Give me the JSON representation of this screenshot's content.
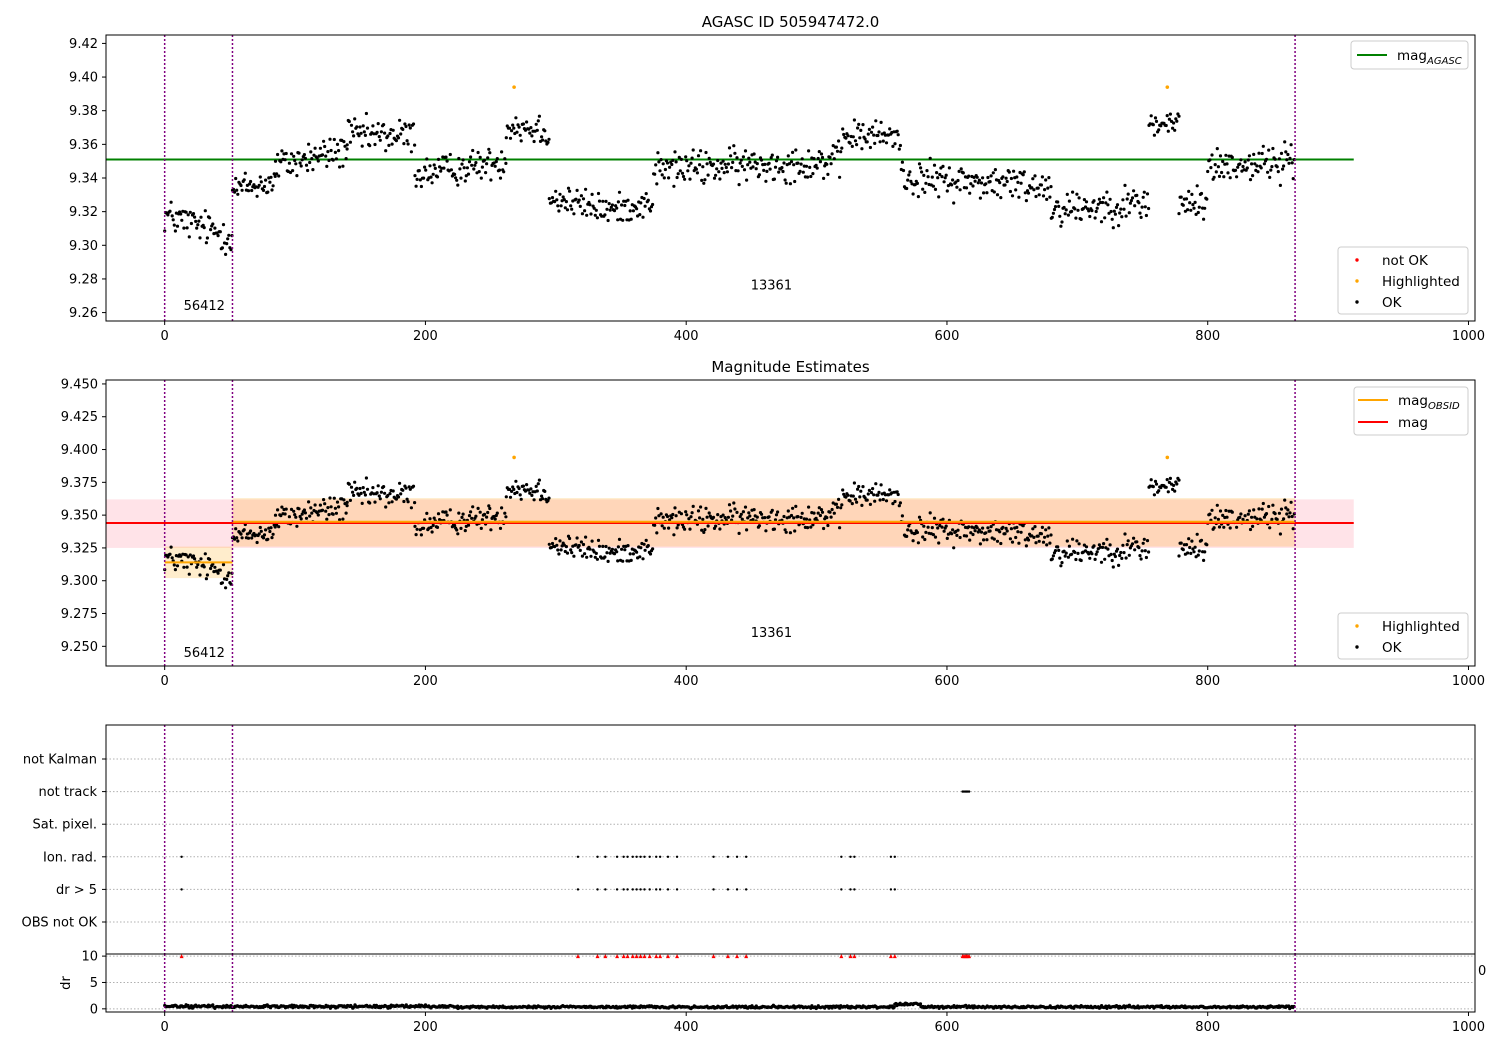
{
  "chart_data": [
    {
      "type": "scatter",
      "title": "AGASC ID 505947472.0",
      "xlabel": "",
      "ylabel": "",
      "xlim": [
        -45,
        1005
      ],
      "ylim": [
        9.255,
        9.425
      ],
      "xticks": [
        0,
        200,
        400,
        600,
        800,
        1000
      ],
      "yticks": [
        9.26,
        9.28,
        9.3,
        9.32,
        9.34,
        9.36,
        9.38,
        9.4,
        9.42
      ],
      "ytick_decimals": 2,
      "grid": false,
      "lines": [
        {
          "name": "mag",
          "subscript": "AGASC",
          "y": 9.351,
          "x": [
            -45,
            912
          ],
          "color": "#008000"
        }
      ],
      "legend_lines": [
        {
          "name": "mag",
          "subscript": "AGASC",
          "color": "#008000"
        }
      ],
      "legend_points": [
        {
          "name": "not OK",
          "color": "#ff0000"
        },
        {
          "name": "Highlighted",
          "color": "#ffa500"
        },
        {
          "name": "OK",
          "color": "#000000"
        }
      ],
      "vlines": [
        0,
        52,
        867
      ],
      "annotations": [
        {
          "text": "56412",
          "x": 25,
          "y": 9.264
        },
        {
          "text": "13361",
          "x": 460,
          "y": 9.276
        }
      ],
      "highlighted_points": [
        {
          "x": 268,
          "y": 9.394
        },
        {
          "x": 769,
          "y": 9.394
        }
      ],
      "segments": [
        {
          "x": [
            0,
            52
          ],
          "y": [
            9.318,
            9.305
          ],
          "noise": 0.009
        },
        {
          "x": [
            52,
            85
          ],
          "y": [
            9.333,
            9.338
          ],
          "noise": 0.008
        },
        {
          "x": [
            85,
            140
          ],
          "y": [
            9.347,
            9.357
          ],
          "noise": 0.009
        },
        {
          "x": [
            140,
            192
          ],
          "y": [
            9.365,
            9.365
          ],
          "noise": 0.009
        },
        {
          "x": [
            192,
            262
          ],
          "y": [
            9.342,
            9.35
          ],
          "noise": 0.008
        },
        {
          "x": [
            262,
            295
          ],
          "y": [
            9.372,
            9.368
          ],
          "noise": 0.009
        },
        {
          "x": [
            295,
            348
          ],
          "y": [
            9.328,
            9.32
          ],
          "noise": 0.008
        },
        {
          "x": [
            348,
            375
          ],
          "y": [
            9.322,
            9.325
          ],
          "noise": 0.007
        },
        {
          "x": [
            375,
            520
          ],
          "y": [
            9.345,
            9.35
          ],
          "noise": 0.009
        },
        {
          "x": [
            520,
            565
          ],
          "y": [
            9.365,
            9.365
          ],
          "noise": 0.008
        },
        {
          "x": [
            565,
            680
          ],
          "y": [
            9.34,
            9.335
          ],
          "noise": 0.009
        },
        {
          "x": [
            680,
            755
          ],
          "y": [
            9.322,
            9.325
          ],
          "noise": 0.009
        },
        {
          "x": [
            755,
            778
          ],
          "y": [
            9.372,
            9.372
          ],
          "noise": 0.008
        },
        {
          "x": [
            778,
            800
          ],
          "y": [
            9.325,
            9.325
          ],
          "noise": 0.008
        },
        {
          "x": [
            800,
            867
          ],
          "y": [
            9.347,
            9.35
          ],
          "noise": 0.009
        }
      ]
    },
    {
      "type": "scatter",
      "title": "Magnitude Estimates",
      "xlabel": "",
      "ylabel": "",
      "xlim": [
        -45,
        1005
      ],
      "ylim": [
        9.235,
        9.453
      ],
      "xticks": [
        0,
        200,
        400,
        600,
        800,
        1000
      ],
      "yticks": [
        9.25,
        9.275,
        9.3,
        9.325,
        9.35,
        9.375,
        9.4,
        9.425,
        9.45
      ],
      "ytick_decimals": 3,
      "grid": false,
      "bands": [
        {
          "x": [
            -45,
            912
          ],
          "y": [
            9.325,
            9.362
          ],
          "color": "#ffc0cb",
          "opacity": 0.45
        },
        {
          "x": [
            52,
            867
          ],
          "y": [
            9.326,
            9.363
          ],
          "color": "#ffa500",
          "opacity": 0.2
        },
        {
          "x": [
            0,
            52
          ],
          "y": [
            9.302,
            9.326
          ],
          "color": "#ffa500",
          "opacity": 0.2
        }
      ],
      "lines": [
        {
          "name": "mag",
          "y": 9.344,
          "x": [
            -45,
            912
          ],
          "color": "#ff0000"
        },
        {
          "name": "mag",
          "subscript": "OBSID",
          "y": 9.345,
          "x": [
            52,
            867
          ],
          "color": "#ffa500"
        },
        {
          "name": "mag",
          "subscript": "OBSID",
          "y": 9.314,
          "x": [
            0,
            52
          ],
          "color": "#ffa500"
        }
      ],
      "legend_lines": [
        {
          "name": "mag",
          "subscript": "OBSID",
          "color": "#ffa500"
        },
        {
          "name": "mag",
          "color": "#ff0000"
        }
      ],
      "legend_points": [
        {
          "name": "Highlighted",
          "color": "#ffa500"
        },
        {
          "name": "OK",
          "color": "#000000"
        }
      ],
      "vlines": [
        0,
        52,
        867
      ],
      "annotations": [
        {
          "text": "56412",
          "x": 25,
          "y": 9.245
        },
        {
          "text": "13361",
          "x": 460,
          "y": 9.26
        }
      ],
      "highlighted_points": [
        {
          "x": 268,
          "y": 9.394
        },
        {
          "x": 769,
          "y": 9.394
        }
      ]
    },
    {
      "type": "scatter",
      "title": "",
      "xlim": [
        -45,
        1005
      ],
      "categories": [
        "not Kalman",
        "not track",
        "Sat. pixel.",
        "Ion. rad.",
        "dr > 5",
        "OBS not OK"
      ],
      "grid": true,
      "vlines": [
        0,
        52,
        867
      ],
      "flags": [
        {
          "category": "not track",
          "x": [
            612,
            613,
            614,
            615,
            616,
            617
          ]
        },
        {
          "category": "Ion. rad.",
          "x": [
            13,
            317,
            332,
            338,
            347,
            352,
            355,
            359,
            362,
            365,
            368,
            372,
            377,
            380,
            386,
            393,
            421,
            432,
            439,
            446,
            519,
            526,
            529,
            557,
            560
          ]
        },
        {
          "category": "dr > 5",
          "x": [
            13,
            317,
            332,
            338,
            347,
            352,
            355,
            359,
            362,
            365,
            368,
            372,
            377,
            380,
            386,
            393,
            421,
            432,
            439,
            446,
            519,
            526,
            529,
            557,
            560
          ]
        }
      ]
    },
    {
      "type": "scatter",
      "title": "",
      "xlabel": "",
      "ylabel": "dr",
      "xlim": [
        -45,
        1005
      ],
      "ylim": [
        -0.6,
        10.4
      ],
      "xticks": [
        0,
        200,
        400,
        600,
        800,
        1000
      ],
      "yticks": [
        0,
        5,
        10
      ],
      "ytick_decimals": 0,
      "grid": true,
      "vlines": [
        0,
        52,
        867
      ],
      "clipped_marker": {
        "y": 10,
        "color": "#ff0000",
        "x": [
          13,
          317,
          332,
          338,
          347,
          352,
          355,
          359,
          362,
          365,
          368,
          372,
          377,
          380,
          386,
          393,
          421,
          432,
          439,
          446,
          519,
          526,
          529,
          557,
          560,
          612,
          613,
          614,
          615,
          616,
          617
        ]
      },
      "segments": [
        {
          "x": [
            0,
            225
          ],
          "y": [
            0.45,
            0.45
          ],
          "noise": 0.25
        },
        {
          "x": [
            225,
            560
          ],
          "y": [
            0.35,
            0.35
          ],
          "noise": 0.2
        },
        {
          "x": [
            560,
            580
          ],
          "y": [
            0.9,
            0.9
          ],
          "noise": 0.2
        },
        {
          "x": [
            580,
            867
          ],
          "y": [
            0.35,
            0.35
          ],
          "noise": 0.2
        }
      ],
      "offset_text": "0"
    }
  ]
}
